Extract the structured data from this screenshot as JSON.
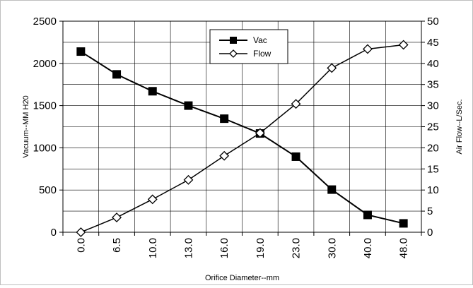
{
  "chart_data": {
    "type": "line",
    "categories": [
      "0.0",
      "6.5",
      "10.0",
      "13.0",
      "16.0",
      "19.0",
      "23.0",
      "30.0",
      "40.0",
      "48.0"
    ],
    "xlabel": "Orifice Diameter--mm",
    "ylabel": "Vacuum--MM H20",
    "y2label": "Air Flow--L/Sec.",
    "ylim": [
      0,
      2500
    ],
    "y2lim": [
      0,
      50
    ],
    "yticks": [
      "0",
      "500",
      "1000",
      "1500",
      "2000",
      "2500"
    ],
    "y2ticks": [
      "0",
      "5",
      "10",
      "15",
      "20",
      "25",
      "30",
      "35",
      "40",
      "45",
      "50"
    ],
    "grid": true,
    "legend_position": "top-center",
    "series": [
      {
        "name": "Vac",
        "axis": "left",
        "marker": "filled-square",
        "color": "#000000",
        "values": [
          2140,
          1870,
          1670,
          1500,
          1345,
          1170,
          895,
          505,
          205,
          105
        ]
      },
      {
        "name": "Flow",
        "axis": "right",
        "marker": "open-diamond",
        "color": "#000000",
        "values": [
          0,
          3.5,
          7.8,
          12.4,
          18.1,
          23.5,
          30.4,
          38.9,
          43.4,
          44.4
        ]
      }
    ]
  }
}
